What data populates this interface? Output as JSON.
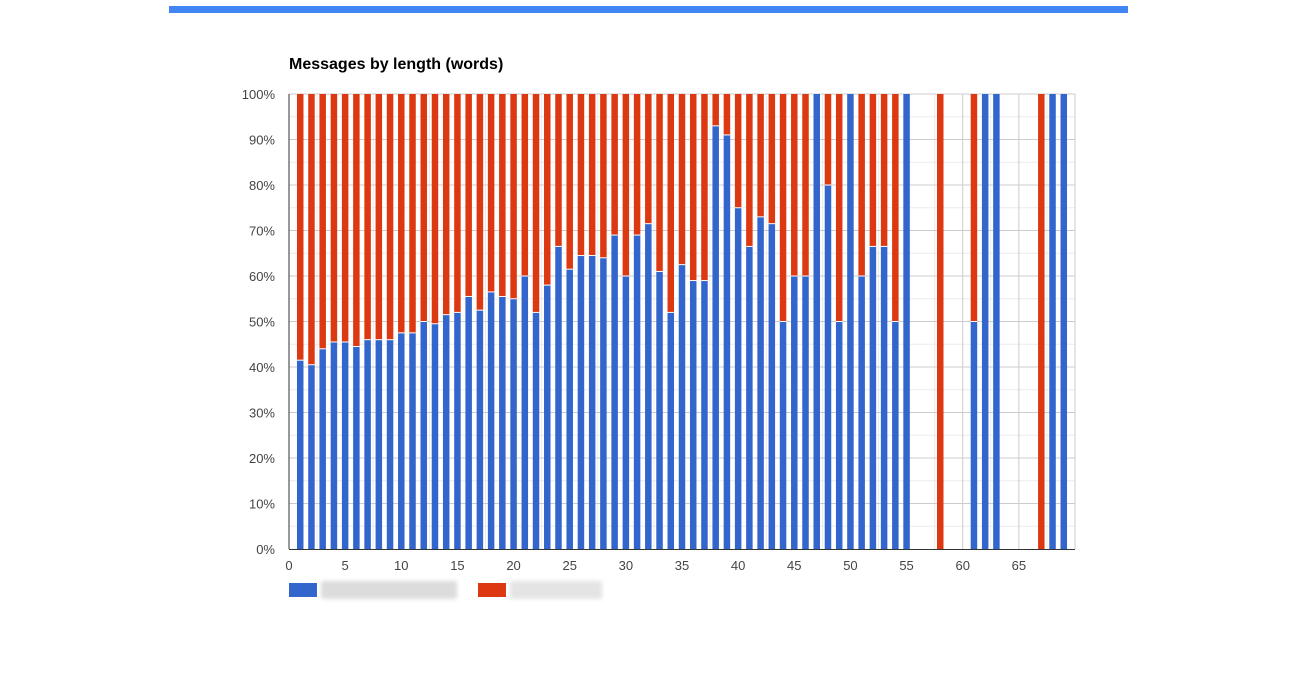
{
  "colors": {
    "top_bar": "#4285f4",
    "series_1": "#3366cc",
    "series_2": "#dc3912",
    "axis": "#333333",
    "grid": "#cccccc",
    "minor_grid": "#ebebeb",
    "blur_label_1": "#dcdcdc",
    "blur_label_2": "#e4e4e4"
  },
  "legend": [
    {
      "color_key": "series_1",
      "blurred": true
    },
    {
      "color_key": "series_2",
      "blurred": true
    }
  ],
  "chart_data": {
    "type": "bar",
    "stacked": "percent",
    "title": "Messages by length (words)",
    "xlabel": "",
    "ylabel": "",
    "xlim": [
      0,
      70
    ],
    "ylim": [
      0,
      100
    ],
    "x_ticks": [
      0,
      5,
      10,
      15,
      20,
      25,
      30,
      35,
      40,
      45,
      50,
      55,
      60,
      65
    ],
    "y_ticks": [
      0,
      10,
      20,
      30,
      40,
      50,
      60,
      70,
      80,
      90,
      100
    ],
    "y_tick_labels": [
      "0%",
      "10%",
      "20%",
      "30%",
      "40%",
      "50%",
      "60%",
      "70%",
      "80%",
      "90%",
      "100%"
    ],
    "grid": true,
    "legend_position": "bottom",
    "x": [
      1,
      2,
      3,
      4,
      5,
      6,
      7,
      8,
      9,
      10,
      11,
      12,
      13,
      14,
      15,
      16,
      17,
      18,
      19,
      20,
      21,
      22,
      23,
      24,
      25,
      26,
      27,
      28,
      29,
      30,
      31,
      32,
      33,
      34,
      35,
      36,
      37,
      38,
      39,
      40,
      41,
      42,
      43,
      44,
      45,
      46,
      47,
      48,
      49,
      50,
      51,
      52,
      53,
      54,
      55,
      58,
      61,
      62,
      63,
      67,
      68,
      69
    ],
    "series": [
      {
        "color_key": "series_1",
        "values": [
          41.5,
          40.5,
          44,
          45.5,
          45.5,
          44.5,
          46,
          46,
          46,
          47.5,
          47.5,
          50,
          49.5,
          51.5,
          52,
          55.5,
          52.5,
          56.5,
          55.5,
          55,
          60,
          52,
          58,
          66.5,
          61.5,
          64.5,
          64.5,
          64,
          69,
          60,
          69,
          71.5,
          61,
          52,
          62.5,
          59,
          59,
          93,
          91,
          75,
          66.5,
          73,
          71.5,
          50,
          60,
          60,
          100,
          80,
          50,
          100,
          60,
          66.5,
          66.5,
          50,
          100,
          0,
          50,
          100,
          100,
          0,
          100,
          100
        ]
      },
      {
        "color_key": "series_2",
        "values": [
          58.5,
          59.5,
          56,
          54.5,
          54.5,
          55.5,
          54,
          54,
          54,
          52.5,
          52.5,
          50,
          50.5,
          48.5,
          48,
          44.5,
          47.5,
          43.5,
          44.5,
          45,
          40,
          48,
          42,
          33.5,
          38.5,
          35.5,
          35.5,
          36,
          31,
          40,
          31,
          28.5,
          39,
          48,
          37.5,
          41,
          41,
          7,
          9,
          25,
          33.5,
          27,
          28.5,
          50,
          40,
          40,
          0,
          20,
          50,
          0,
          40,
          33.5,
          33.5,
          50,
          0,
          100,
          50,
          0,
          0,
          100,
          0,
          0
        ]
      }
    ]
  }
}
